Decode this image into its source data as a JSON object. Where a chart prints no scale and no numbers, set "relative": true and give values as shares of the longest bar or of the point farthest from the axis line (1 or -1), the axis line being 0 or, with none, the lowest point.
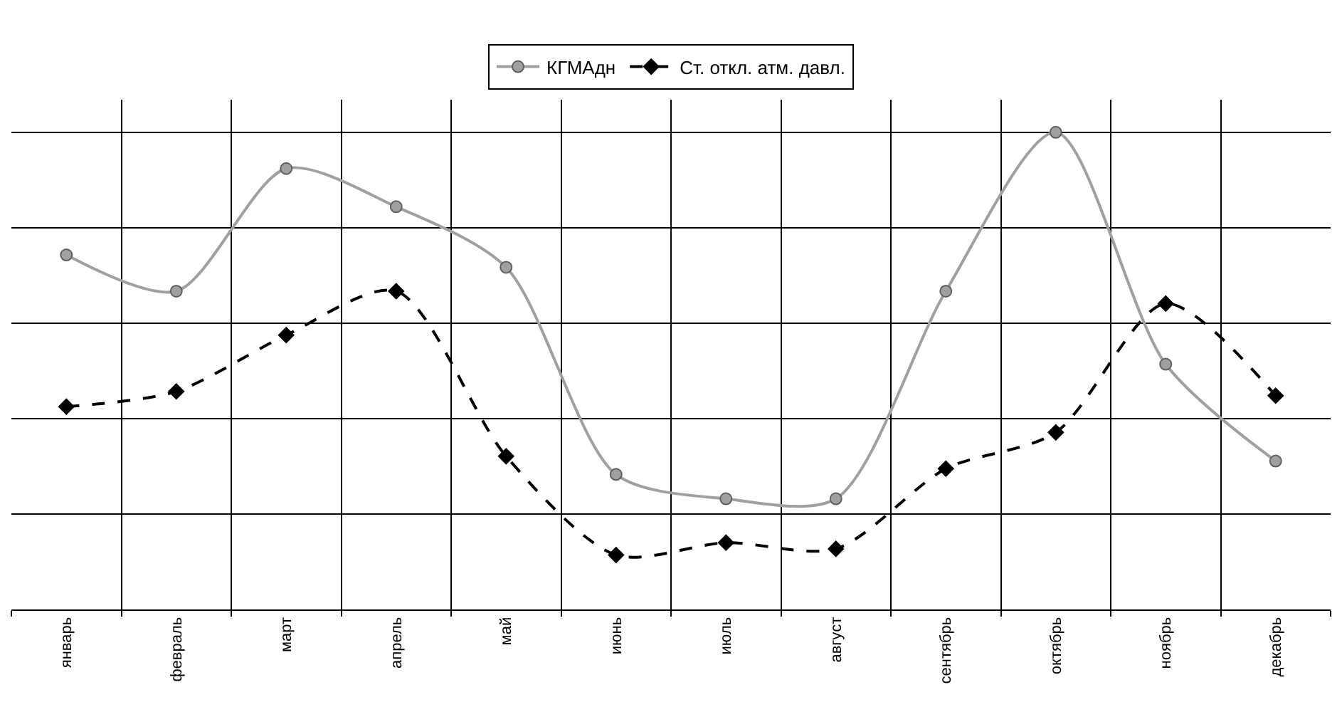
{
  "chart_data": {
    "type": "line",
    "relative": true,
    "grid": true,
    "legend": "top",
    "categories": [
      "январь",
      "февраль",
      "март",
      "апрель",
      "май",
      "июнь",
      "июль",
      "август",
      "сентябрь",
      "октябрь",
      "ноябрь",
      "декабрь"
    ],
    "series": [
      {
        "name": "КГМАдн",
        "color": "#a0a0a0",
        "marker": "circle",
        "line_style": "solid",
        "values": [
          0.743,
          0.667,
          0.924,
          0.844,
          0.717,
          0.283,
          0.232,
          0.232,
          0.667,
          1,
          0.514,
          0.311
        ]
      },
      {
        "name": "Ст. откл. атм. давл.",
        "color": "#000000",
        "marker": "diamond",
        "line_style": "dashed",
        "values": [
          0.425,
          0.457,
          0.575,
          0.667,
          0.321,
          0.114,
          0.14,
          0.127,
          0.295,
          0.371,
          0.641,
          0.448
        ]
      }
    ]
  }
}
